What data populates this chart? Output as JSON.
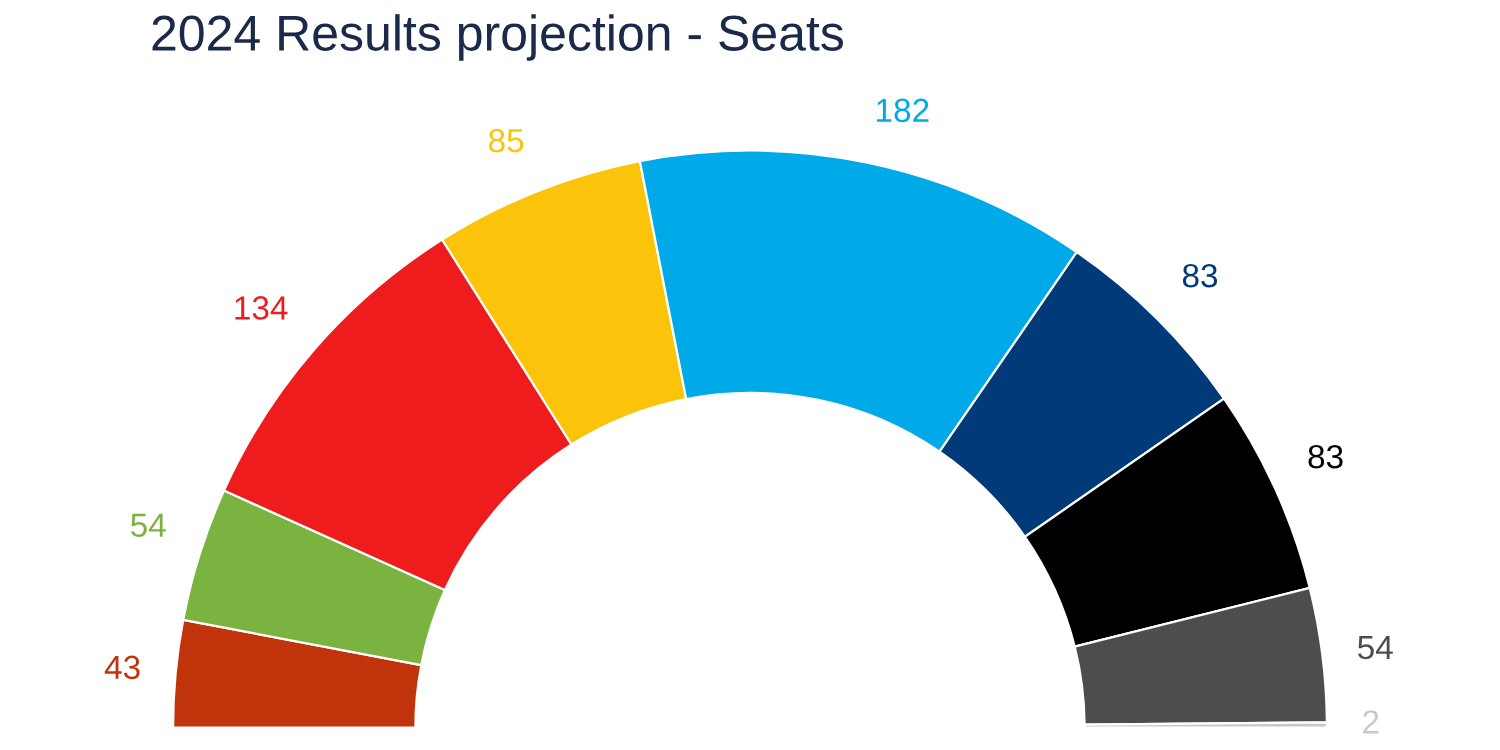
{
  "chart_data": {
    "type": "donut",
    "title": "2024 Results projection - Seats",
    "categories": [
      null,
      null,
      null,
      null,
      null,
      null,
      null,
      null,
      null
    ],
    "values": [
      43,
      54,
      134,
      85,
      182,
      83,
      83,
      54,
      2
    ],
    "colors": [
      "#c1330b",
      "#7ab33f",
      "#ee1c1c",
      "#fcc30b",
      "#00a9e8",
      "#003a78",
      "#000000",
      "#4d4d4d",
      "#c8c8c8"
    ],
    "data_labels": true
  }
}
